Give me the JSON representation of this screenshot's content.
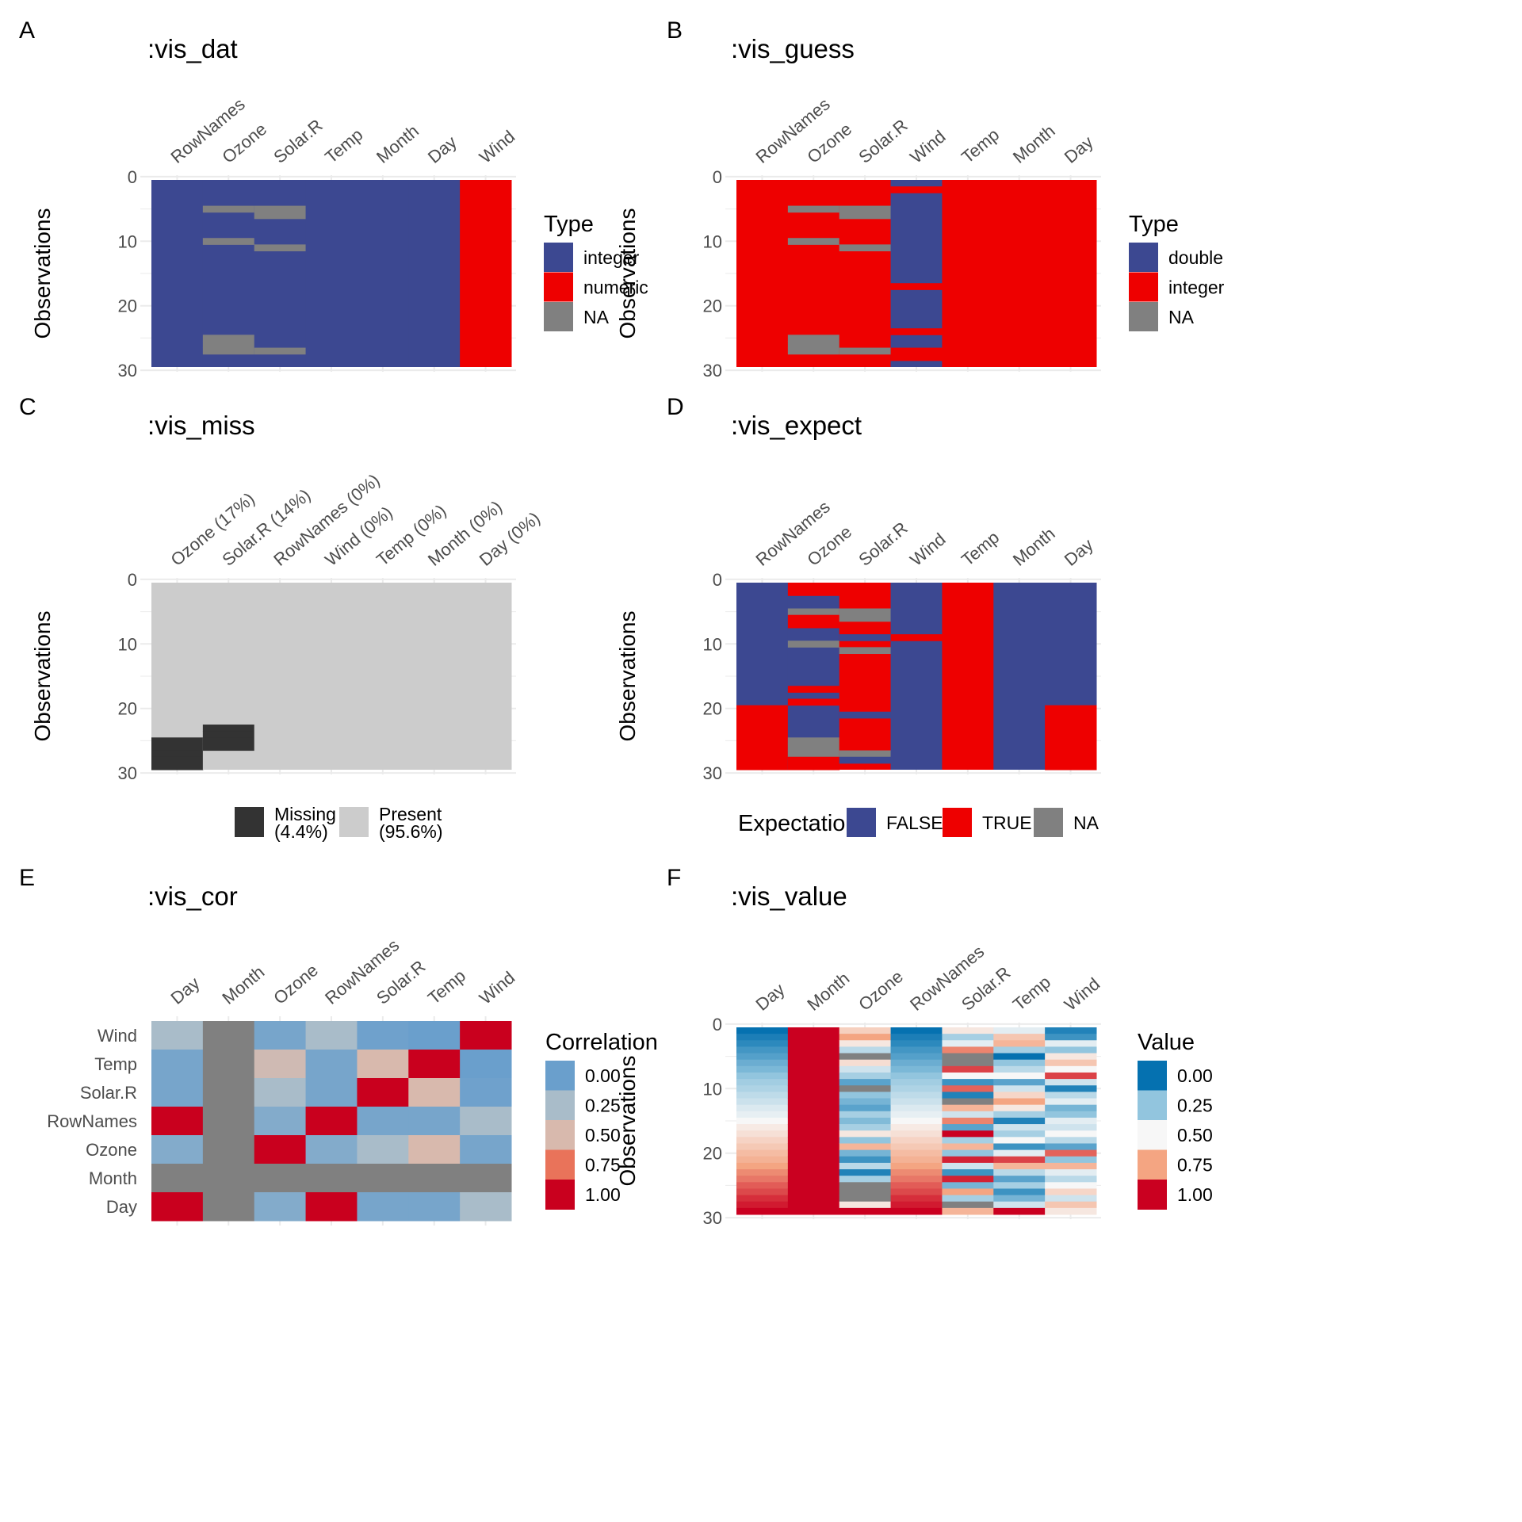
{
  "colors": {
    "blue": "#3c4891",
    "red": "#ee0000",
    "na": "#808080",
    "missing": "#333333",
    "present": "#cccccc",
    "grid": "#ebebeb"
  },
  "chart_data": [
    {
      "id": "A",
      "panel_label": "A",
      "title": ":vis_dat",
      "type": "heatmap",
      "columns": [
        "RowNames",
        "Ozone",
        "Solar.R",
        "Temp",
        "Month",
        "Day",
        "Wind"
      ],
      "y_label": "Observations",
      "y_ticks": [
        0,
        10,
        20,
        30
      ],
      "n_rows": 29,
      "legend": {
        "title": "Type",
        "items": [
          {
            "label": "integer",
            "color": "#3c4891"
          },
          {
            "label": "numeric",
            "color": "#ee0000"
          },
          {
            "label": "NA",
            "color": "#808080"
          }
        ]
      },
      "col_fill": {
        "RowNames": "#3c4891",
        "Ozone": "#3c4891",
        "Solar.R": "#3c4891",
        "Temp": "#3c4891",
        "Month": "#3c4891",
        "Day": "#3c4891",
        "Wind": "#ee0000"
      },
      "cells": {
        "Ozone": [
          [
            5,
            "#808080"
          ],
          [
            10,
            "#808080"
          ],
          [
            25,
            "#808080"
          ],
          [
            26,
            "#808080"
          ],
          [
            27,
            "#808080"
          ]
        ],
        "Solar.R": [
          [
            5,
            "#808080"
          ],
          [
            6,
            "#808080"
          ],
          [
            11,
            "#808080"
          ],
          [
            27,
            "#808080"
          ]
        ]
      }
    },
    {
      "id": "B",
      "panel_label": "B",
      "title": ":vis_guess",
      "type": "heatmap",
      "columns": [
        "RowNames",
        "Ozone",
        "Solar.R",
        "Wind",
        "Temp",
        "Month",
        "Day"
      ],
      "y_label": "Observations",
      "y_ticks": [
        0,
        10,
        20,
        30
      ],
      "n_rows": 29,
      "legend": {
        "title": "Type",
        "items": [
          {
            "label": "double",
            "color": "#3c4891"
          },
          {
            "label": "integer",
            "color": "#ee0000"
          },
          {
            "label": "NA",
            "color": "#808080"
          }
        ]
      },
      "col_fill": {
        "RowNames": "#ee0000",
        "Ozone": "#ee0000",
        "Solar.R": "#ee0000",
        "Wind": "#3c4891",
        "Temp": "#ee0000",
        "Month": "#ee0000",
        "Day": "#ee0000"
      },
      "cells": {
        "Ozone": [
          [
            5,
            "#808080"
          ],
          [
            10,
            "#808080"
          ],
          [
            25,
            "#808080"
          ],
          [
            26,
            "#808080"
          ],
          [
            27,
            "#808080"
          ]
        ],
        "Solar.R": [
          [
            5,
            "#808080"
          ],
          [
            6,
            "#808080"
          ],
          [
            11,
            "#808080"
          ],
          [
            27,
            "#808080"
          ]
        ],
        "Wind": [
          [
            2,
            "#ee0000"
          ],
          [
            17,
            "#ee0000"
          ],
          [
            24,
            "#ee0000"
          ],
          [
            27,
            "#ee0000"
          ],
          [
            28,
            "#ee0000"
          ]
        ]
      }
    },
    {
      "id": "C",
      "panel_label": "C",
      "title": ":vis_miss",
      "type": "heatmap",
      "columns": [
        "Ozone (17%)",
        "Solar.R (14%)",
        "RowNames (0%)",
        "Wind (0%)",
        "Temp (0%)",
        "Month (0%)",
        "Day (0%)"
      ],
      "y_label": "Observations",
      "y_ticks": [
        0,
        10,
        20,
        30
      ],
      "n_rows": 29,
      "legend": {
        "title": "",
        "items": [
          {
            "label": "Missing",
            "label2": "(4.4%)",
            "color": "#333333"
          },
          {
            "label": "Present",
            "label2": "(95.6%)",
            "color": "#cccccc"
          }
        ]
      },
      "col_fill": {
        "Ozone (17%)": "#cccccc",
        "Solar.R (14%)": "#cccccc",
        "RowNames (0%)": "#cccccc",
        "Wind (0%)": "#cccccc",
        "Temp (0%)": "#cccccc",
        "Month (0%)": "#cccccc",
        "Day (0%)": "#cccccc"
      },
      "cells": {
        "Ozone (17%)": [
          [
            25,
            "#333333"
          ],
          [
            26,
            "#333333"
          ],
          [
            27,
            "#333333"
          ],
          [
            28,
            "#333333"
          ],
          [
            29,
            "#333333"
          ]
        ],
        "Solar.R (14%)": [
          [
            23,
            "#333333"
          ],
          [
            24,
            "#333333"
          ],
          [
            25,
            "#333333"
          ],
          [
            26,
            "#333333"
          ]
        ]
      }
    },
    {
      "id": "D",
      "panel_label": "D",
      "title": ":vis_expect",
      "type": "heatmap",
      "columns": [
        "RowNames",
        "Ozone",
        "Solar.R",
        "Wind",
        "Temp",
        "Month",
        "Day"
      ],
      "y_label": "Observations",
      "y_ticks": [
        0,
        10,
        20,
        30
      ],
      "n_rows": 29,
      "legend": {
        "title": "Expectation",
        "items": [
          {
            "label": "FALSE",
            "color": "#3c4891"
          },
          {
            "label": "TRUE",
            "color": "#ee0000"
          },
          {
            "label": "NA",
            "color": "#808080"
          }
        ]
      },
      "col_fill": {
        "RowNames": "#3c4891",
        "Ozone": "#3c4891",
        "Solar.R": "#ee0000",
        "Wind": "#3c4891",
        "Temp": "#ee0000",
        "Month": "#3c4891",
        "Day": "#3c4891"
      },
      "cells": {
        "RowNames": [
          [
            20,
            "#ee0000"
          ],
          [
            21,
            "#ee0000"
          ],
          [
            22,
            "#ee0000"
          ],
          [
            23,
            "#ee0000"
          ],
          [
            24,
            "#ee0000"
          ],
          [
            25,
            "#ee0000"
          ],
          [
            26,
            "#ee0000"
          ],
          [
            27,
            "#ee0000"
          ],
          [
            28,
            "#ee0000"
          ],
          [
            29,
            "#ee0000"
          ]
        ],
        "Ozone": [
          [
            1,
            "#ee0000"
          ],
          [
            2,
            "#ee0000"
          ],
          [
            5,
            "#808080"
          ],
          [
            6,
            "#ee0000"
          ],
          [
            7,
            "#ee0000"
          ],
          [
            10,
            "#808080"
          ],
          [
            17,
            "#ee0000"
          ],
          [
            19,
            "#ee0000"
          ],
          [
            25,
            "#808080"
          ],
          [
            26,
            "#808080"
          ],
          [
            27,
            "#808080"
          ],
          [
            28,
            "#ee0000"
          ],
          [
            29,
            "#ee0000"
          ]
        ],
        "Solar.R": [
          [
            5,
            "#808080"
          ],
          [
            6,
            "#808080"
          ],
          [
            9,
            "#3c4891"
          ],
          [
            11,
            "#808080"
          ],
          [
            21,
            "#3c4891"
          ],
          [
            27,
            "#808080"
          ],
          [
            28,
            "#3c4891"
          ]
        ],
        "Wind": [
          [
            1,
            "#3c4891"
          ],
          [
            9,
            "#ee0000"
          ]
        ],
        "Day": [
          [
            20,
            "#ee0000"
          ],
          [
            21,
            "#ee0000"
          ],
          [
            22,
            "#ee0000"
          ],
          [
            23,
            "#ee0000"
          ],
          [
            24,
            "#ee0000"
          ],
          [
            25,
            "#ee0000"
          ],
          [
            26,
            "#ee0000"
          ],
          [
            27,
            "#ee0000"
          ],
          [
            28,
            "#ee0000"
          ],
          [
            29,
            "#ee0000"
          ]
        ]
      }
    },
    {
      "id": "E",
      "panel_label": "E",
      "title": ":vis_cor",
      "type": "heatmap",
      "columns": [
        "Day",
        "Month",
        "Ozone",
        "RowNames",
        "Solar.R",
        "Temp",
        "Wind"
      ],
      "rows": [
        "Wind",
        "Temp",
        "Solar.R",
        "RowNames",
        "Ozone",
        "Month",
        "Day"
      ],
      "values": [
        [
          0.25,
          null,
          0.05,
          0.25,
          0.02,
          0.0,
          1.0
        ],
        [
          0.05,
          null,
          0.45,
          0.05,
          0.5,
          1.0,
          0.0
        ],
        [
          0.05,
          null,
          0.25,
          0.05,
          1.0,
          0.5,
          0.02
        ],
        [
          1.0,
          null,
          0.1,
          1.0,
          0.05,
          0.05,
          0.25
        ],
        [
          0.1,
          null,
          1.0,
          0.1,
          0.25,
          0.5,
          0.05
        ],
        [
          null,
          null,
          null,
          null,
          null,
          null,
          null
        ],
        [
          1.0,
          null,
          0.1,
          1.0,
          0.05,
          0.05,
          0.25
        ]
      ],
      "legend": {
        "title": "Correlation",
        "ticks": [
          "0.00",
          "0.25",
          "0.50",
          "0.75",
          "1.00"
        ]
      }
    },
    {
      "id": "F",
      "panel_label": "F",
      "title": ":vis_value",
      "type": "heatmap",
      "columns": [
        "Day",
        "Month",
        "Ozone",
        "RowNames",
        "Solar.R",
        "Temp",
        "Wind"
      ],
      "y_label": "Observations",
      "y_ticks": [
        0,
        10,
        20,
        30
      ],
      "n_rows": 29,
      "values": {
        "Day": [
          0.0,
          0.04,
          0.07,
          0.11,
          0.14,
          0.18,
          0.21,
          0.25,
          0.29,
          0.32,
          0.36,
          0.39,
          0.43,
          0.46,
          0.5,
          0.54,
          0.57,
          0.61,
          0.64,
          0.68,
          0.71,
          0.75,
          0.79,
          0.82,
          0.86,
          0.89,
          0.93,
          0.96,
          1.0
        ],
        "Month": [
          1,
          1,
          1,
          1,
          1,
          1,
          1,
          1,
          1,
          1,
          1,
          1,
          1,
          1,
          1,
          1,
          1,
          1,
          1,
          1,
          1,
          1,
          1,
          1,
          1,
          1,
          1,
          1,
          1
        ],
        "Ozone": [
          0.62,
          0.75,
          0.55,
          0.35,
          null,
          0.58,
          0.4,
          0.3,
          0.15,
          null,
          0.25,
          0.2,
          0.15,
          0.3,
          0.22,
          0.3,
          0.55,
          0.25,
          0.7,
          0.2,
          0.1,
          0.35,
          0.05,
          0.3,
          null,
          null,
          null,
          0.55,
          1.0
        ],
        "RowNames": [
          0.0,
          0.04,
          0.07,
          0.11,
          0.14,
          0.18,
          0.21,
          0.25,
          0.29,
          0.32,
          0.36,
          0.39,
          0.43,
          0.46,
          0.5,
          0.54,
          0.57,
          0.61,
          0.64,
          0.68,
          0.71,
          0.75,
          0.79,
          0.82,
          0.86,
          0.89,
          0.93,
          0.96,
          1.0
        ],
        "Solar.R": [
          0.55,
          0.3,
          0.45,
          0.8,
          null,
          null,
          0.9,
          0.5,
          0.1,
          0.85,
          0.05,
          null,
          0.7,
          0.4,
          0.8,
          0.15,
          1.0,
          0.3,
          0.7,
          0.25,
          0.95,
          0.4,
          0.1,
          0.95,
          0.2,
          0.75,
          0.3,
          null,
          0.7
        ],
        "Temp": [
          0.45,
          0.65,
          0.7,
          0.3,
          0.0,
          0.25,
          0.35,
          0.5,
          0.15,
          0.4,
          0.6,
          0.75,
          0.55,
          0.3,
          0.05,
          0.4,
          0.3,
          0.5,
          0.1,
          0.45,
          0.9,
          0.7,
          0.35,
          0.15,
          0.3,
          0.1,
          0.2,
          0.4,
          1.0
        ],
        "Wind": [
          0.05,
          0.1,
          0.45,
          0.25,
          0.55,
          0.65,
          0.5,
          0.9,
          0.4,
          0.05,
          0.35,
          0.45,
          0.2,
          0.25,
          0.45,
          0.4,
          0.5,
          0.35,
          0.15,
          0.85,
          0.25,
          0.7,
          0.45,
          0.35,
          0.5,
          0.6,
          0.4,
          0.65,
          0.55
        ]
      },
      "legend": {
        "title": "Value",
        "ticks": [
          "0.00",
          "0.25",
          "0.50",
          "0.75",
          "1.00"
        ]
      }
    }
  ]
}
